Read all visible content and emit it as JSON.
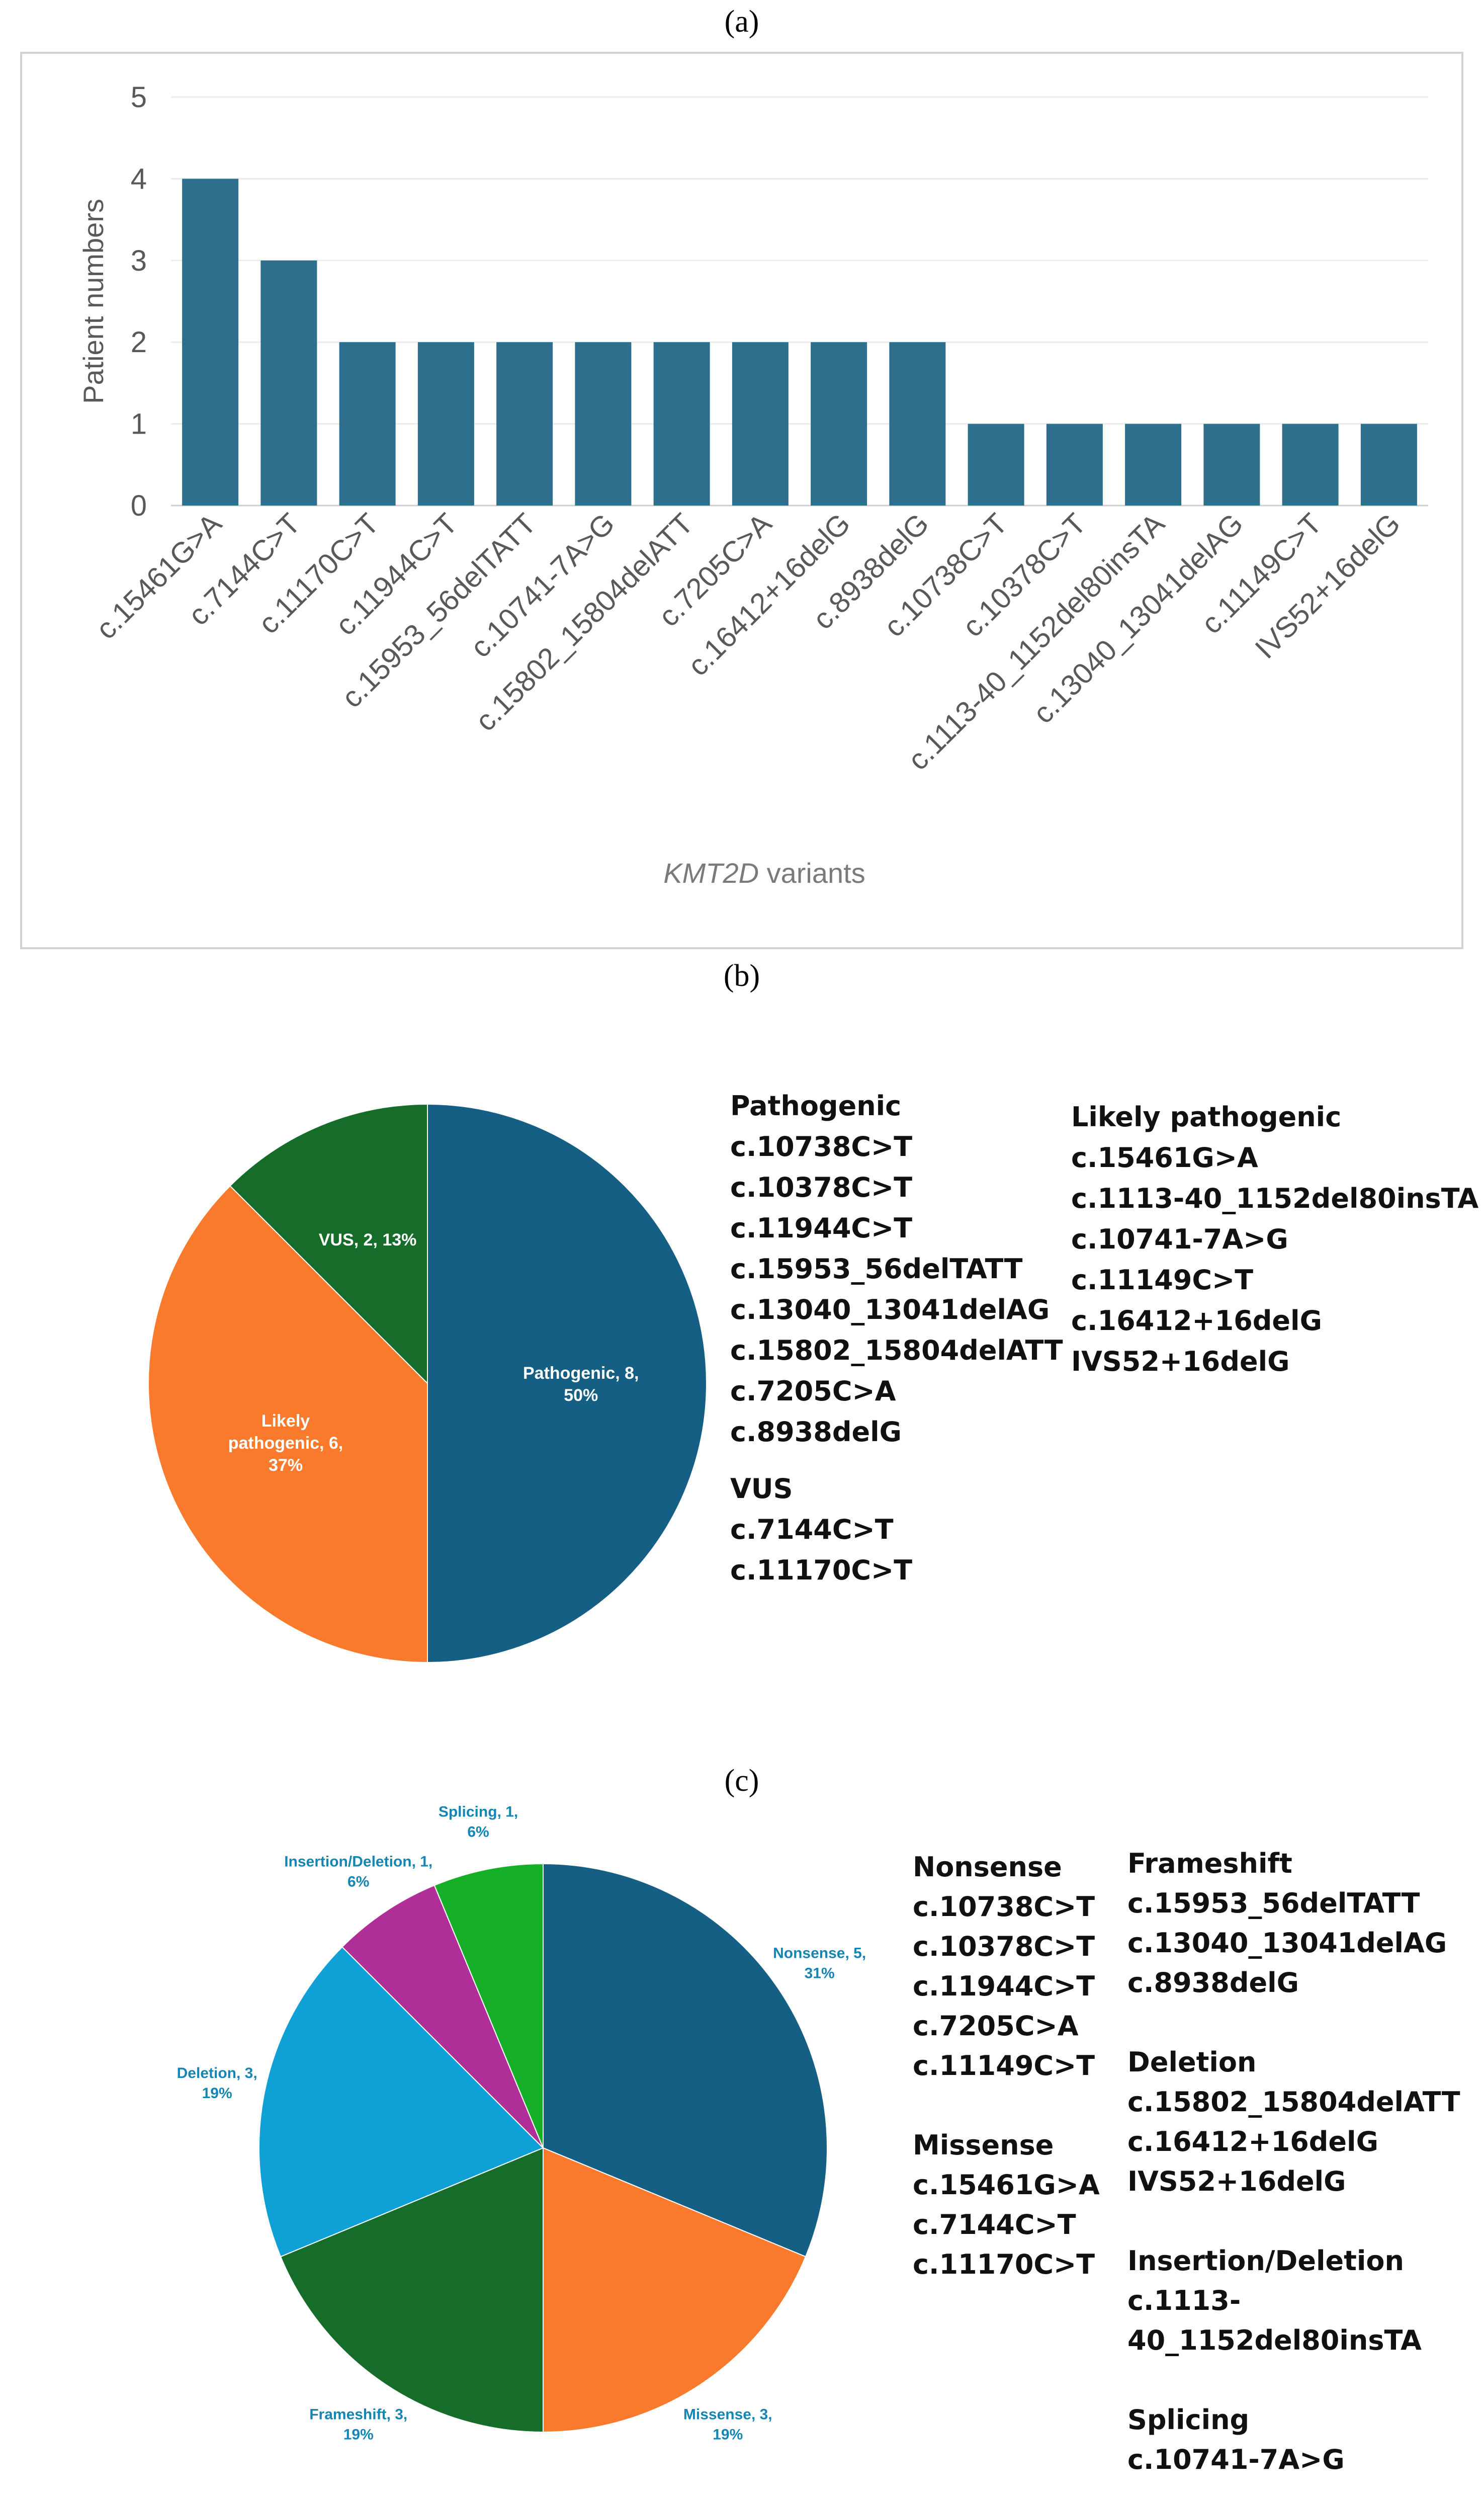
{
  "panels": {
    "a": "(a)",
    "b": "(b)",
    "c": "(c)"
  },
  "chart_data": [
    {
      "type": "bar",
      "title": "",
      "xlabel_italic": "KMT2D",
      "xlabel_rest": " variants",
      "ylabel": "Patient numbers",
      "ylim": [
        0,
        5
      ],
      "yticks": [
        0,
        1,
        2,
        3,
        4,
        5
      ],
      "grid": true,
      "color": "#2E6F8E",
      "categories": [
        "c.15461G>A",
        "c.7144C>T",
        "c.11170C>T",
        "c.11944C>T",
        "c.15953_56delTATT",
        "c.10741-7A>G",
        "c.15802_15804delATT",
        "c.7205C>A",
        "c.16412+16delG",
        "c.8938delG",
        "c.10738C>T",
        "c.10378C>T",
        "c.1113-40_1152del80insTA",
        "c.13040_13041delAG",
        "c.11149C>T",
        "IVS52+16delG"
      ],
      "values": [
        4,
        3,
        2,
        2,
        2,
        2,
        2,
        2,
        2,
        2,
        1,
        1,
        1,
        1,
        1,
        1
      ]
    },
    {
      "type": "pie",
      "slices": [
        {
          "label": "Pathogenic, 8, 50%",
          "name": "Pathogenic",
          "value": 8,
          "percent": 50,
          "color": "#155F85",
          "lines": [
            "Pathogenic, 8,",
            "50%"
          ],
          "label_color": "#ffffff"
        },
        {
          "label": "Likely pathogenic, 6, 37%",
          "name": "Likely pathogenic",
          "value": 6,
          "percent": 37,
          "color": "#F97A2D",
          "lines": [
            "Likely",
            "pathogenic, 6,",
            "37%"
          ],
          "label_color": "#ffffff"
        },
        {
          "label": "VUS, 2, 13%",
          "name": "VUS",
          "value": 2,
          "percent": 13,
          "color": "#166D2A",
          "lines": [
            "VUS, 2, 13%"
          ],
          "label_color": "#ffffff"
        }
      ]
    },
    {
      "type": "pie",
      "slices": [
        {
          "label": "Nonsense, 5, 31%",
          "name": "Nonsense",
          "value": 5,
          "percent": 31,
          "color": "#155F85",
          "lines": [
            "Nonsense, 5,",
            "31%"
          ],
          "label_color": "#1585B5"
        },
        {
          "label": "Missense, 3, 19%",
          "name": "Missense",
          "value": 3,
          "percent": 19,
          "color": "#F97A2D",
          "lines": [
            "Missense, 3,",
            "19%"
          ],
          "label_color": "#1585B5"
        },
        {
          "label": "Frameshift, 3, 19%",
          "name": "Frameshift",
          "value": 3,
          "percent": 19,
          "color": "#166D2A",
          "lines": [
            "Frameshift, 3,",
            "19%"
          ],
          "label_color": "#1585B5"
        },
        {
          "label": "Deletion, 3, 19%",
          "name": "Deletion",
          "value": 3,
          "percent": 19,
          "color": "#0FA0D6",
          "lines": [
            "Deletion, 3,",
            "19%"
          ],
          "label_color": "#1585B5"
        },
        {
          "label": "Insertion/Deletion, 1, 6%",
          "name": "Insertion/Deletion",
          "value": 1,
          "percent": 6,
          "color": "#B02E97",
          "lines": [
            "Insertion/Deletion, 1,",
            "6%"
          ],
          "label_color": "#1585B5"
        },
        {
          "label": "Splicing, 1, 6%",
          "name": "Splicing",
          "value": 1,
          "percent": 6,
          "color": "#16AF28",
          "lines": [
            "Splicing, 1,",
            "6%"
          ],
          "label_color": "#1585B5"
        }
      ]
    }
  ],
  "legend_b": {
    "pathogenic": {
      "heading": "Pathogenic",
      "items": [
        "c.10738C>T",
        "c.10378C>T",
        "c.11944C>T",
        "c.15953_56delTATT",
        "c.13040_13041delAG",
        "c.15802_15804delATT",
        "c.7205C>A",
        "c.8938delG"
      ]
    },
    "vus": {
      "heading": "VUS",
      "items": [
        "c.7144C>T",
        "c.11170C>T"
      ]
    },
    "likely": {
      "heading": "Likely pathogenic",
      "items": [
        "c.15461G>A",
        "c.1113-40_1152del80insTA",
        "c.10741-7A>G",
        "c.11149C>T",
        "c.16412+16delG",
        "IVS52+16delG"
      ]
    }
  },
  "legend_c": {
    "nonsense": {
      "heading": "Nonsense",
      "items": [
        "c.10738C>T",
        "c.10378C>T",
        "c.11944C>T",
        "c.7205C>A",
        "c.11149C>T"
      ]
    },
    "missense": {
      "heading": "Missense",
      "items": [
        "c.15461G>A",
        "c.7144C>T",
        "c.11170C>T"
      ]
    },
    "frameshift": {
      "heading": "Frameshift",
      "items": [
        "c.15953_56delTATT",
        "c.13040_13041delAG",
        "c.8938delG"
      ]
    },
    "deletion": {
      "heading": "Deletion",
      "items": [
        "c.15802_15804delATT",
        "c.16412+16delG",
        "IVS52+16delG"
      ]
    },
    "indel": {
      "heading": "Insertion/Deletion",
      "items": [
        "c.1113-",
        "40_1152del80insTA"
      ]
    },
    "splicing": {
      "heading": "Splicing",
      "items": [
        "c.10741-7A>G"
      ]
    }
  }
}
